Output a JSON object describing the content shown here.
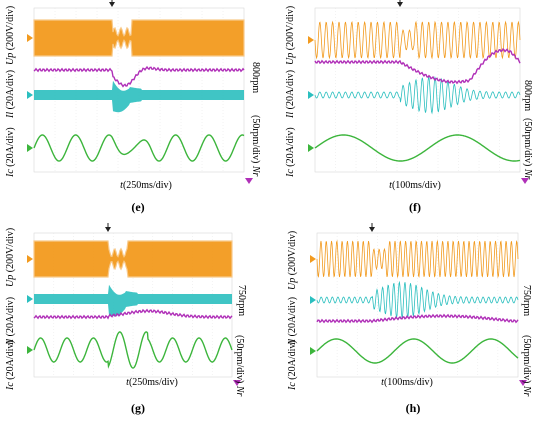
{
  "chart_data": [
    {
      "panel": "e",
      "type": "line",
      "caption": "(e)",
      "time_axis": {
        "symbol": "t",
        "scale": "(250ms/div)"
      },
      "channels": [
        {
          "symbol": "Up",
          "scale": "(200V/div)",
          "color": "#f29a1e"
        },
        {
          "symbol": "Il",
          "scale": "(20A/div)",
          "color": "#2bbfbf"
        },
        {
          "symbol": "Ic",
          "scale": "(20A/div)",
          "color": "#3cb53c"
        }
      ],
      "speed_trace": {
        "symbol": "Nr",
        "scale": "(50rpm/div)",
        "level": "800rpm",
        "color": "#b030b8"
      }
    },
    {
      "panel": "f",
      "type": "line",
      "caption": "(f)",
      "time_axis": {
        "symbol": "t",
        "scale": "(100ms/div)"
      },
      "channels": [
        {
          "symbol": "Up",
          "scale": "(200V/div)",
          "color": "#f29a1e"
        },
        {
          "symbol": "Il",
          "scale": "(20A/div)",
          "color": "#2bbfbf"
        },
        {
          "symbol": "Ic",
          "scale": "(20A/div)",
          "color": "#3cb53c"
        }
      ],
      "speed_trace": {
        "symbol": "Nr",
        "scale": "(50rpm/div)",
        "level": "800rpm",
        "color": "#b030b8"
      }
    },
    {
      "panel": "g",
      "type": "line",
      "caption": "(g)",
      "time_axis": {
        "symbol": "t",
        "scale": "(250ms/div)"
      },
      "channels": [
        {
          "symbol": "Up",
          "scale": "(200V/div)",
          "color": "#f29a1e"
        },
        {
          "symbol": "Il",
          "scale": "(20A/div)",
          "color": "#2bbfbf"
        },
        {
          "symbol": "Ic",
          "scale": "(20A/div)",
          "color": "#3cb53c"
        }
      ],
      "speed_trace": {
        "symbol": "Nr",
        "scale": "(50rpm/div)",
        "level": "750rpm",
        "color": "#b030b8"
      }
    },
    {
      "panel": "h",
      "type": "line",
      "caption": "(h)",
      "time_axis": {
        "symbol": "t",
        "scale": "(100ms/div)"
      },
      "channels": [
        {
          "symbol": "Up",
          "scale": "(200V/div)",
          "color": "#f29a1e"
        },
        {
          "symbol": "Il",
          "scale": "(20A/div)",
          "color": "#2bbfbf"
        },
        {
          "symbol": "Ic",
          "scale": "(20A/div)",
          "color": "#3cb53c"
        }
      ],
      "speed_trace": {
        "symbol": "Nr",
        "scale": "(50rpm/div)",
        "level": "750rpm",
        "color": "#b030b8"
      }
    }
  ]
}
